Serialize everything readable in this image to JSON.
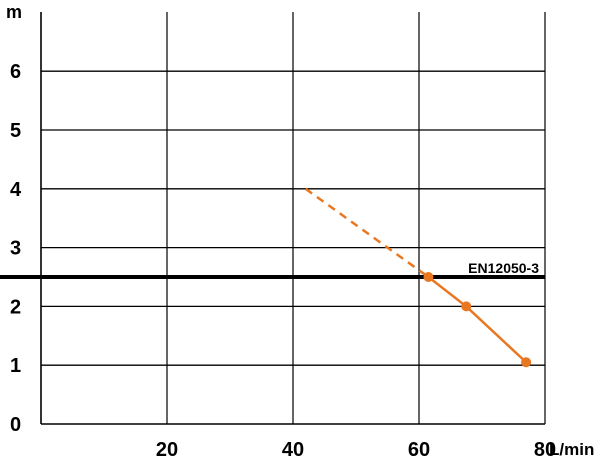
{
  "chart_data": {
    "type": "line",
    "title": "",
    "ylabel": "m",
    "xlabel": "L/min",
    "xlim": [
      0,
      80
    ],
    "ylim": [
      0,
      7
    ],
    "x_ticks": [
      20,
      40,
      60,
      80
    ],
    "y_ticks": [
      0,
      1,
      2,
      3,
      4,
      5,
      6
    ],
    "grid": true,
    "series": [
      {
        "style": "solid",
        "color": "#E87722",
        "points": [
          [
            61.5,
            2.5
          ],
          [
            67.5,
            2.0
          ],
          [
            77,
            1.05
          ]
        ]
      },
      {
        "style": "dashed",
        "color": "#E87722",
        "points": [
          [
            42,
            4.0
          ],
          [
            61.5,
            2.5
          ]
        ]
      }
    ],
    "reference_line": {
      "y": 2.5,
      "label": "EN12050-3",
      "color": "#000000"
    }
  }
}
